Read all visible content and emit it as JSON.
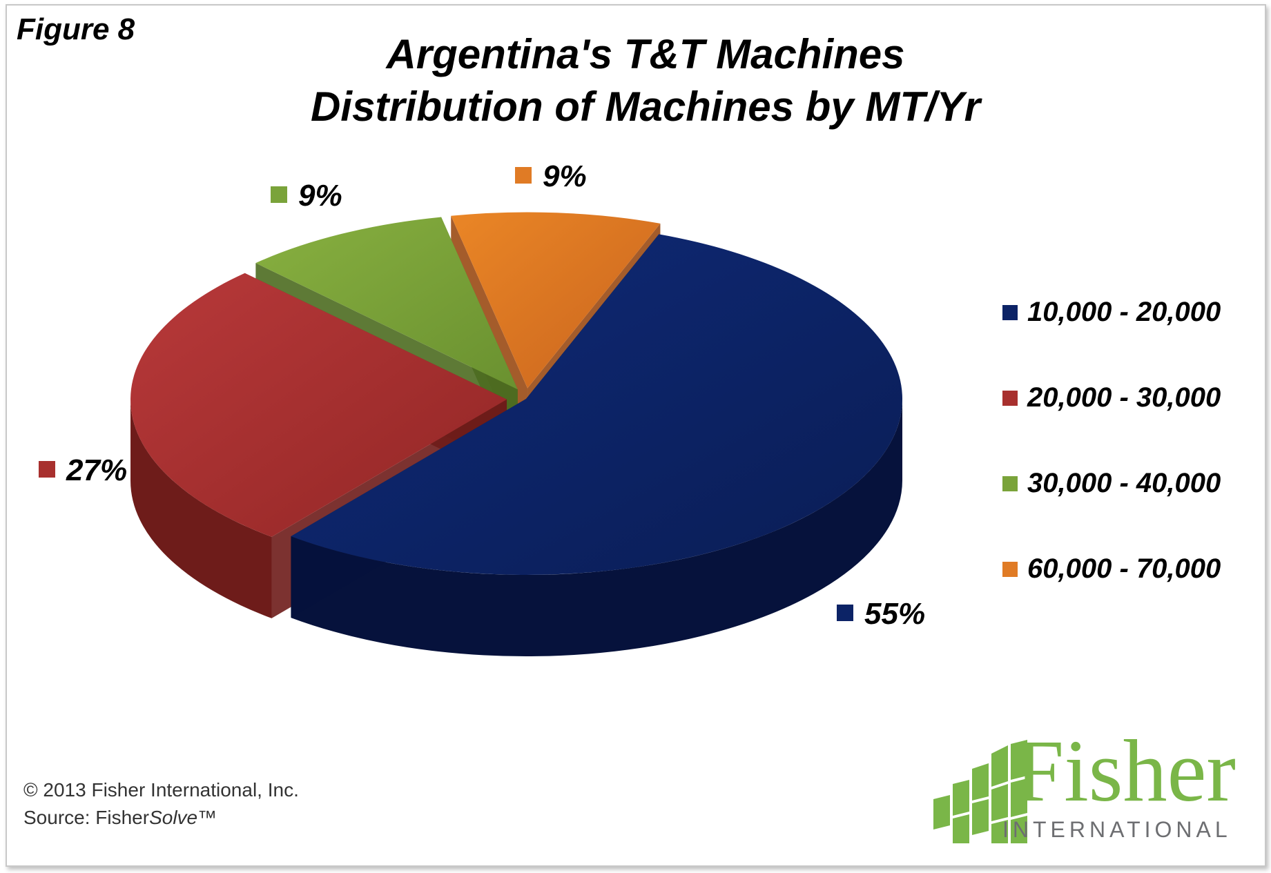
{
  "figure_label": "Figure 8",
  "title_line1": "Argentina's T&T Machines",
  "title_line2": "Distribution of Machines by MT/Yr",
  "copyright": "© 2013 Fisher International, Inc.",
  "source_prefix": "Source: Fisher",
  "source_italic": "Solve",
  "source_suffix": "™",
  "logo": {
    "word": "Fisher",
    "sub": "INTERNATIONAL",
    "color": "#7ab648"
  },
  "chart_data": {
    "type": "pie",
    "title": "Argentina's T&T Machines Distribution of Machines by MT/Yr",
    "legend_position": "right",
    "categories": [
      "10,000 - 20,000",
      "20,000 - 30,000",
      "30,000 - 40,000",
      "60,000 - 70,000"
    ],
    "values": [
      55,
      27,
      9,
      9
    ],
    "labels": [
      "55%",
      "27%",
      "9%",
      "9%"
    ],
    "colors": [
      "#0c2366",
      "#a8302e",
      "#7aa33a",
      "#e07b25"
    ]
  }
}
